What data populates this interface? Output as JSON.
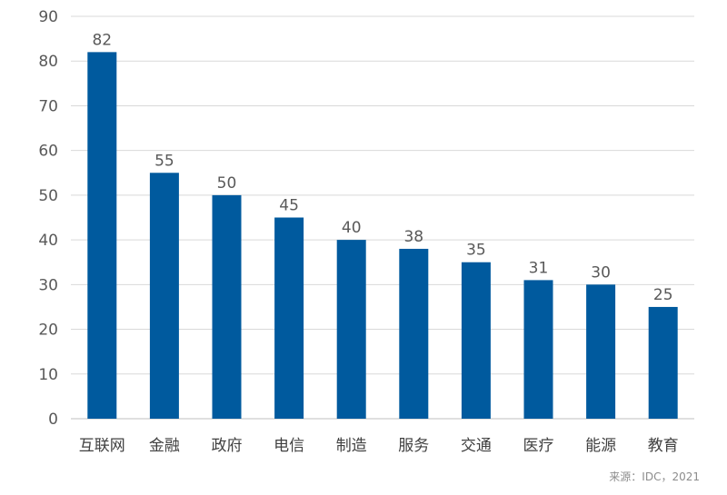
{
  "chart_data": {
    "type": "bar",
    "categories": [
      "互联网",
      "金融",
      "政府",
      "电信",
      "制造",
      "服务",
      "交通",
      "医疗",
      "能源",
      "教育"
    ],
    "values": [
      82,
      55,
      50,
      45,
      40,
      38,
      35,
      31,
      30,
      25
    ],
    "title": "",
    "xlabel": "",
    "ylabel": "",
    "ylim": [
      0,
      90
    ],
    "yticks": [
      0,
      10,
      20,
      30,
      40,
      50,
      60,
      70,
      80,
      90
    ],
    "grid": true,
    "legend": "none",
    "bar_color": "#005a9e",
    "grid_color": "#d9d9d9"
  },
  "source": {
    "text": "来源：IDC，2021"
  }
}
